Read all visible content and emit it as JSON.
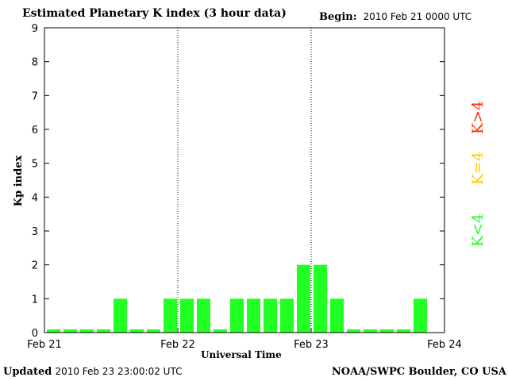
{
  "header": {
    "title": "Estimated Planetary K index (3 hour data)",
    "begin_label": "Begin:",
    "begin_value": "2010 Feb 21 0000 UTC"
  },
  "footer": {
    "updated_label": "Updated",
    "updated_value": "2010 Feb 23 23:00:02 UTC",
    "source": "NOAA/SWPC Boulder, CO USA"
  },
  "colors": {
    "green": "#22ff22",
    "yellow": "#ffcc00",
    "red": "#ff3300"
  },
  "chart_data": {
    "type": "bar",
    "title": "Estimated Planetary K index (3 hour data)",
    "xlabel": "Universal Time",
    "ylabel": "Kp index",
    "ylim": [
      0,
      9
    ],
    "yticks": [
      "0",
      "1",
      "2",
      "3",
      "4",
      "5",
      "6",
      "7",
      "8",
      "9"
    ],
    "xticks": [
      "Feb 21",
      "Feb 22",
      "Feb 23",
      "Feb 24"
    ],
    "day_dividers": [
      "Feb 22",
      "Feb 23"
    ],
    "interval_hours": 3,
    "values": [
      0,
      0,
      0,
      0,
      1,
      0,
      0,
      1,
      1,
      1,
      0,
      1,
      1,
      1,
      1,
      2,
      2,
      1,
      0,
      0,
      0,
      0,
      1
    ],
    "legend": [
      {
        "label": "K<4",
        "color": "#22ff22"
      },
      {
        "label": "K=4",
        "color": "#ffcc00"
      },
      {
        "label": "K>4",
        "color": "#ff3300"
      }
    ]
  }
}
